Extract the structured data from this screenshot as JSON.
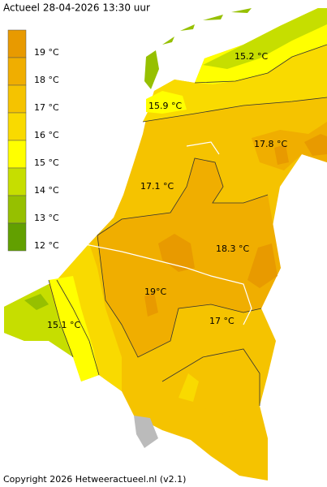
{
  "header": {
    "title": "Actueel 28-04-2026  13:30 uur"
  },
  "legend": [
    {
      "label": "19 °C",
      "color": "#e89a00"
    },
    {
      "label": "18 °C",
      "color": "#f0ae00"
    },
    {
      "label": "17 °C",
      "color": "#f5c300"
    },
    {
      "label": "16 °C",
      "color": "#f9da00"
    },
    {
      "label": "15 °C",
      "color": "#ffff00"
    },
    {
      "label": "14 °C",
      "color": "#c6de00"
    },
    {
      "label": "13 °C",
      "color": "#96c000"
    },
    {
      "label": "12 °C",
      "color": "#62a000"
    }
  ],
  "map_labels": [
    "15.2 °C",
    "15.9 °C",
    "17.8 °C",
    "17.1 °C",
    "18.3 °C",
    "19°C",
    "15.1 °C",
    "17 °C"
  ],
  "footer": {
    "copyright": "Copyright 2026 Hetweeractueel.nl (v2.1)"
  }
}
